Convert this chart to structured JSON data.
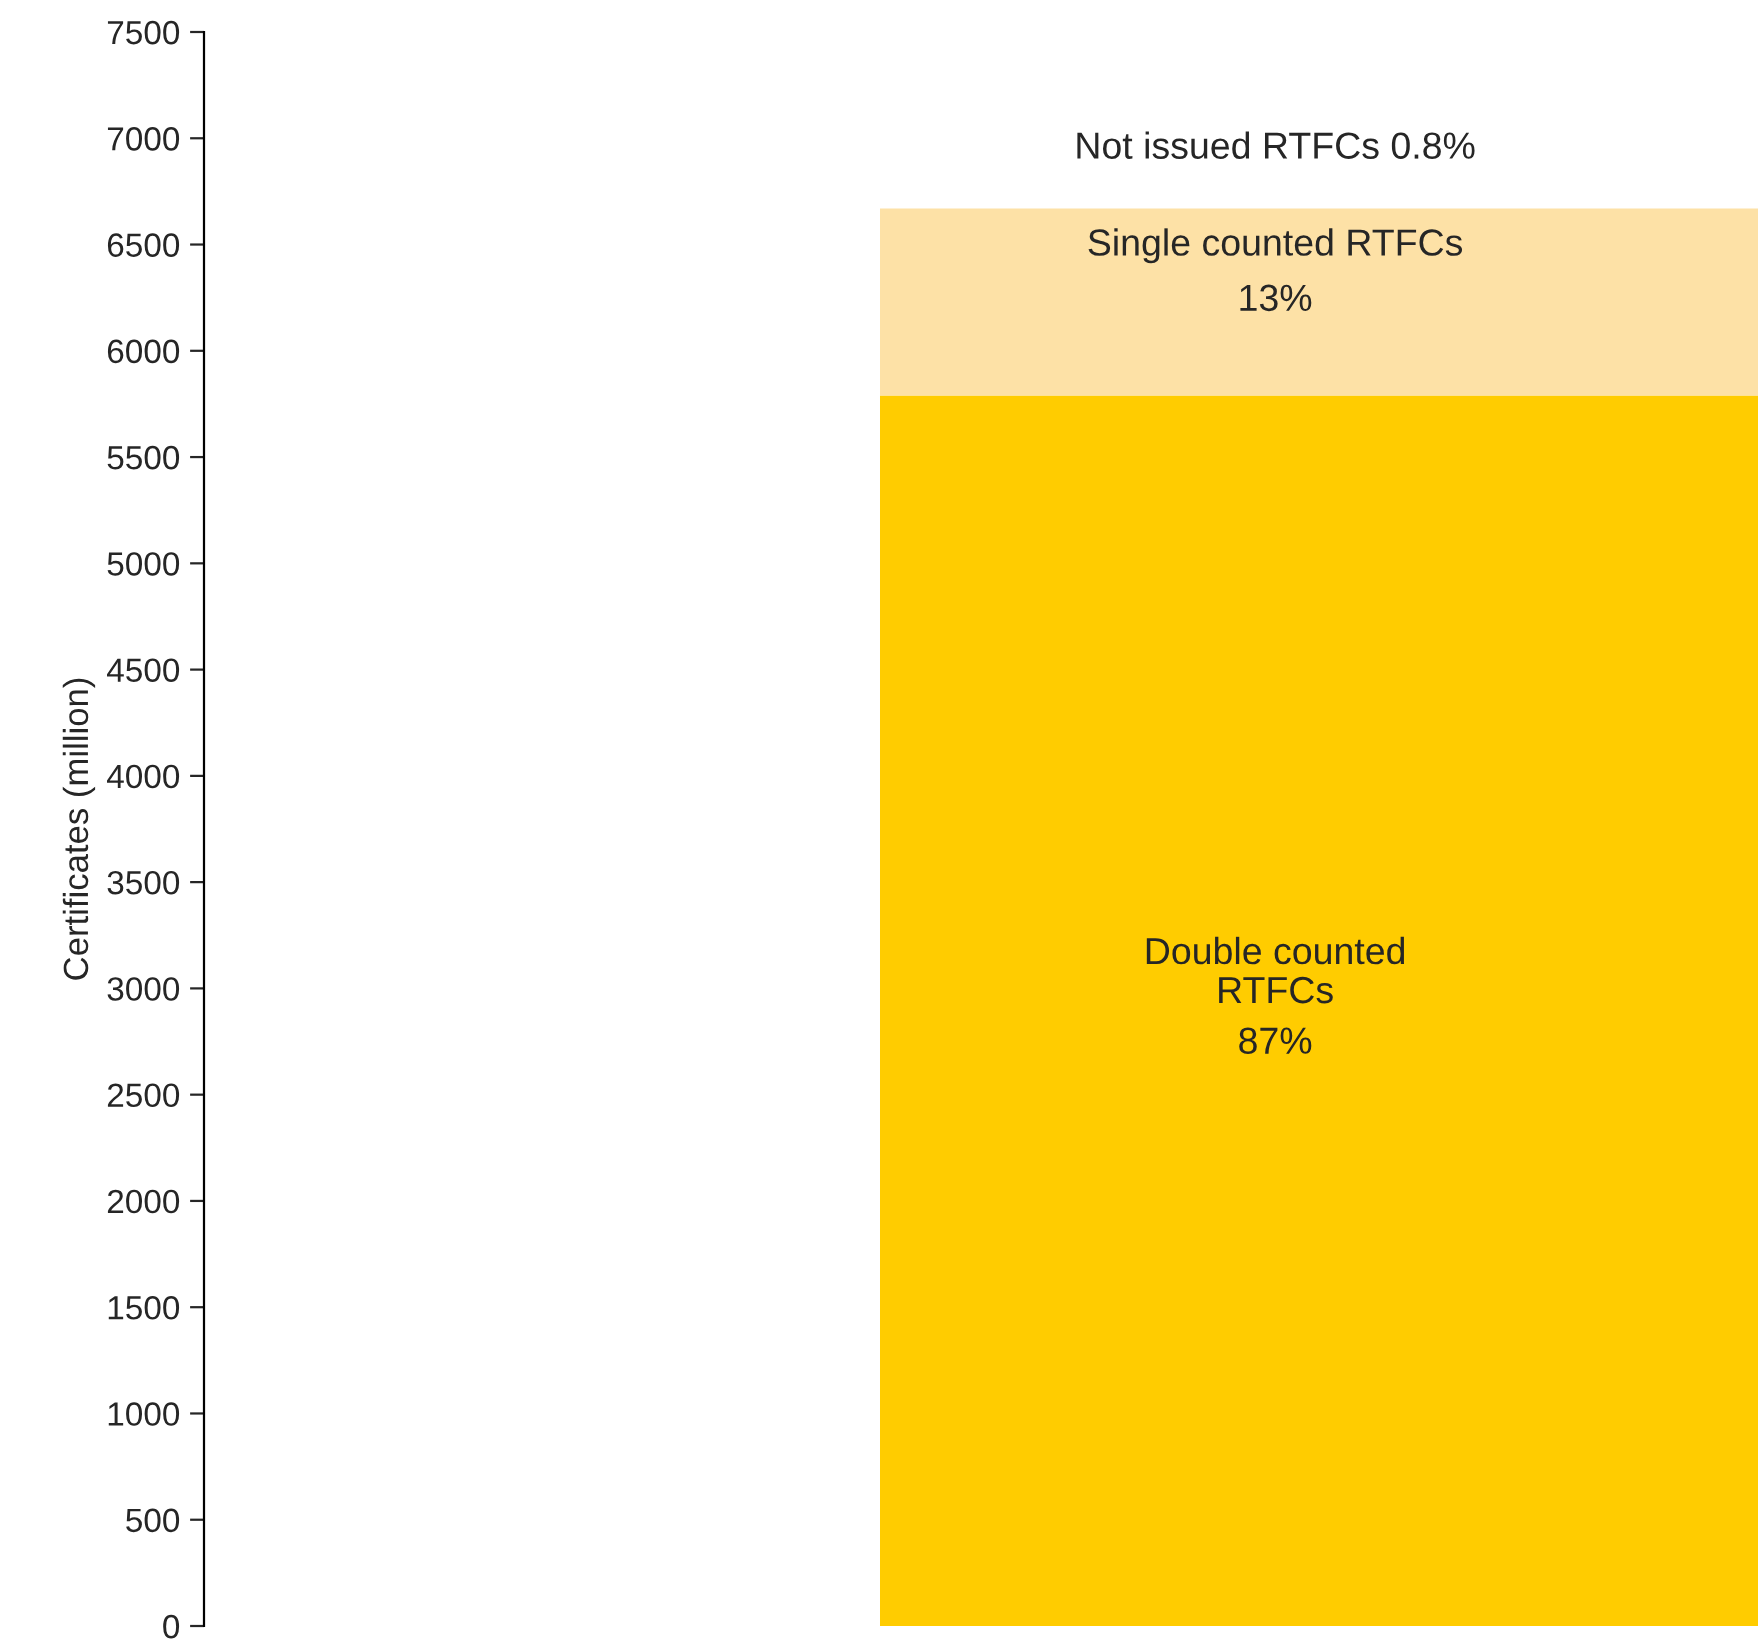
{
  "chart_data": {
    "type": "bar",
    "stacked": true,
    "categories": [
      null
    ],
    "ylabel": "Certificates (million)",
    "series": [
      {
        "name": "Double counted\nRTFCs",
        "color": "#ffcc00",
        "values": [
          5790
        ]
      },
      {
        "name": "Single counted RTFCs",
        "color": "#fde1a6",
        "values": [
          880
        ]
      }
    ],
    "annotations": [
      "Not issued RTFCs 0.8%",
      "87%",
      "13%"
    ],
    "ylim": [
      0,
      7500
    ],
    "yticks": [
      0,
      500,
      1000,
      1500,
      2000,
      2500,
      3000,
      3500,
      4000,
      4500,
      5000,
      5500,
      6000,
      6500,
      7000,
      7500
    ],
    "grid": false,
    "legend": false
  }
}
